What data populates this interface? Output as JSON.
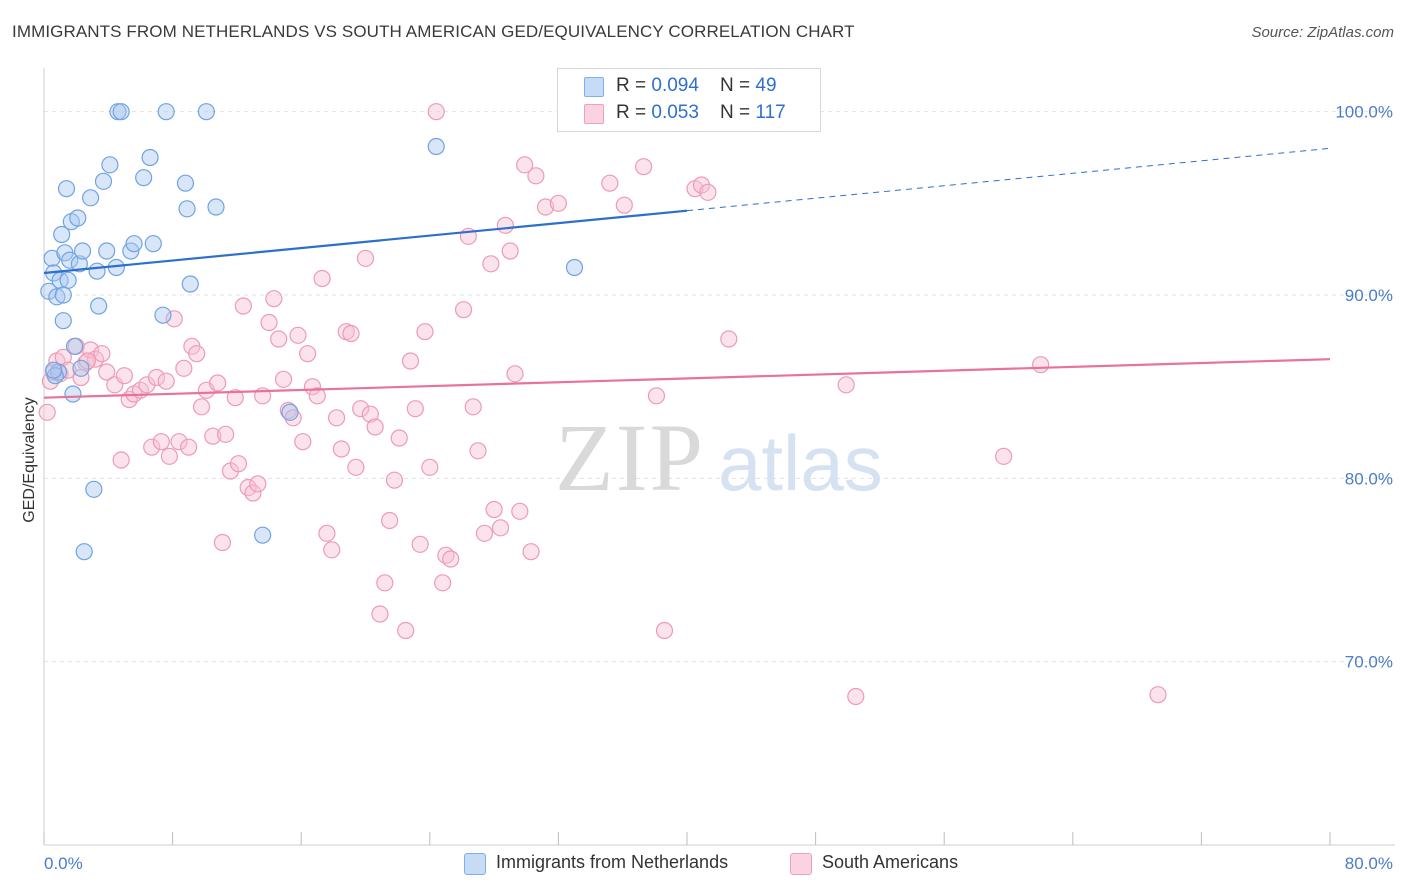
{
  "header": {
    "title": "IMMIGRANTS FROM NETHERLANDS VS SOUTH AMERICAN GED/EQUIVALENCY CORRELATION CHART",
    "source": "Source: ZipAtlas.com"
  },
  "watermark": {
    "zip": "ZIP",
    "atlas": "atlas"
  },
  "legend": {
    "rows": [
      {
        "r_label": "R = ",
        "r_value": "0.094",
        "n_label": "N = ",
        "n_value": "49",
        "color": "#a9c8f0"
      },
      {
        "r_label": "R = ",
        "r_value": "0.053",
        "n_label": "N = ",
        "n_value": "117",
        "color": "#f5b3c8"
      }
    ]
  },
  "bottom_legend": {
    "items": [
      {
        "label": "Immigrants from Netherlands",
        "color": "#a9c8f0"
      },
      {
        "label": "South Americans",
        "color": "#f5b3c8"
      }
    ]
  },
  "chart_data": {
    "type": "scatter",
    "title": "IMMIGRANTS FROM NETHERLANDS VS SOUTH AMERICAN GED/EQUIVALENCY CORRELATION CHART",
    "xlabel": "",
    "ylabel": "GED/Equivalency",
    "xlim": [
      0,
      80
    ],
    "ylim": [
      60,
      102
    ],
    "x_tick_labels": [
      "0.0%",
      "80.0%"
    ],
    "y_ticks": [
      70,
      80,
      90,
      100
    ],
    "y_tick_labels": [
      "70.0%",
      "80.0%",
      "90.0%",
      "100.0%"
    ],
    "grid": true,
    "legend_position": "top-center",
    "series": [
      {
        "name": "Immigrants from Netherlands",
        "color": "#7fb0e8",
        "line_color": "#2c6fce",
        "trend": {
          "x": [
            0,
            40
          ],
          "y": [
            91.2,
            94.6
          ],
          "dashed_to": [
            80,
            98.0
          ]
        },
        "points": [
          [
            0.3,
            90.2
          ],
          [
            0.5,
            92.0
          ],
          [
            0.6,
            91.2
          ],
          [
            0.8,
            89.9
          ],
          [
            0.9,
            85.8
          ],
          [
            1.0,
            90.8
          ],
          [
            1.1,
            93.3
          ],
          [
            1.2,
            88.6
          ],
          [
            1.3,
            92.3
          ],
          [
            1.4,
            95.8
          ],
          [
            1.5,
            90.8
          ],
          [
            1.6,
            91.9
          ],
          [
            1.7,
            94.0
          ],
          [
            1.8,
            84.6
          ],
          [
            1.9,
            87.2
          ],
          [
            2.1,
            94.2
          ],
          [
            2.2,
            91.7
          ],
          [
            2.3,
            86.0
          ],
          [
            2.4,
            92.4
          ],
          [
            2.5,
            76.0
          ],
          [
            2.9,
            95.3
          ],
          [
            3.1,
            79.4
          ],
          [
            3.3,
            91.3
          ],
          [
            3.4,
            89.4
          ],
          [
            3.7,
            96.2
          ],
          [
            3.9,
            92.4
          ],
          [
            4.1,
            97.1
          ],
          [
            4.5,
            91.5
          ],
          [
            4.6,
            100.0
          ],
          [
            4.8,
            100.0
          ],
          [
            5.4,
            92.4
          ],
          [
            5.6,
            92.8
          ],
          [
            6.2,
            96.4
          ],
          [
            6.6,
            97.5
          ],
          [
            6.8,
            92.8
          ],
          [
            7.4,
            88.9
          ],
          [
            7.6,
            100.0
          ],
          [
            8.8,
            96.1
          ],
          [
            8.9,
            94.7
          ],
          [
            9.1,
            90.6
          ],
          [
            10.1,
            100.0
          ],
          [
            10.7,
            94.8
          ],
          [
            13.6,
            76.9
          ],
          [
            15.3,
            83.6
          ],
          [
            24.4,
            98.1
          ],
          [
            33.0,
            91.5
          ],
          [
            0.7,
            85.6
          ],
          [
            0.6,
            85.9
          ],
          [
            1.2,
            90.0
          ]
        ]
      },
      {
        "name": "South Americans",
        "color": "#f0a0b8",
        "line_color": "#e8729a",
        "trend": {
          "x": [
            0,
            80
          ],
          "y": [
            84.4,
            86.5
          ]
        },
        "points": [
          [
            0.2,
            83.6
          ],
          [
            0.4,
            85.3
          ],
          [
            0.6,
            85.8
          ],
          [
            0.8,
            86.4
          ],
          [
            1.0,
            85.7
          ],
          [
            1.2,
            86.6
          ],
          [
            1.5,
            85.9
          ],
          [
            2.0,
            87.2
          ],
          [
            2.3,
            85.5
          ],
          [
            2.6,
            86.3
          ],
          [
            2.9,
            87.0
          ],
          [
            3.2,
            86.5
          ],
          [
            3.6,
            86.8
          ],
          [
            3.9,
            85.8
          ],
          [
            4.4,
            85.1
          ],
          [
            4.8,
            81.0
          ],
          [
            5.0,
            85.6
          ],
          [
            5.3,
            84.3
          ],
          [
            5.6,
            84.6
          ],
          [
            6.0,
            84.8
          ],
          [
            6.4,
            85.1
          ],
          [
            6.7,
            81.7
          ],
          [
            7.0,
            85.5
          ],
          [
            7.3,
            82.0
          ],
          [
            7.6,
            85.3
          ],
          [
            7.8,
            81.2
          ],
          [
            8.1,
            88.7
          ],
          [
            8.4,
            82.0
          ],
          [
            8.7,
            86.0
          ],
          [
            9.0,
            81.7
          ],
          [
            9.2,
            87.2
          ],
          [
            9.5,
            86.8
          ],
          [
            9.8,
            83.9
          ],
          [
            10.1,
            84.8
          ],
          [
            10.5,
            82.3
          ],
          [
            10.8,
            85.2
          ],
          [
            11.1,
            76.5
          ],
          [
            11.3,
            82.4
          ],
          [
            11.6,
            80.4
          ],
          [
            11.9,
            84.4
          ],
          [
            12.1,
            80.8
          ],
          [
            12.4,
            89.4
          ],
          [
            12.7,
            79.5
          ],
          [
            13.0,
            79.2
          ],
          [
            13.3,
            79.7
          ],
          [
            13.6,
            84.5
          ],
          [
            14.0,
            88.5
          ],
          [
            14.3,
            89.8
          ],
          [
            14.6,
            87.6
          ],
          [
            14.9,
            85.4
          ],
          [
            15.2,
            83.7
          ],
          [
            15.5,
            83.3
          ],
          [
            15.8,
            87.8
          ],
          [
            16.1,
            82.0
          ],
          [
            16.4,
            86.8
          ],
          [
            16.7,
            85.0
          ],
          [
            17.0,
            84.5
          ],
          [
            17.3,
            90.9
          ],
          [
            17.6,
            77.0
          ],
          [
            17.9,
            76.1
          ],
          [
            18.2,
            83.3
          ],
          [
            18.5,
            81.6
          ],
          [
            18.8,
            88.0
          ],
          [
            19.1,
            87.9
          ],
          [
            19.4,
            80.6
          ],
          [
            19.7,
            83.8
          ],
          [
            20.0,
            92.0
          ],
          [
            20.3,
            83.5
          ],
          [
            20.6,
            82.8
          ],
          [
            20.9,
            72.6
          ],
          [
            21.2,
            74.3
          ],
          [
            21.5,
            77.7
          ],
          [
            21.8,
            79.9
          ],
          [
            22.1,
            82.2
          ],
          [
            22.5,
            71.7
          ],
          [
            22.8,
            86.4
          ],
          [
            23.1,
            83.8
          ],
          [
            23.4,
            76.4
          ],
          [
            23.7,
            88.0
          ],
          [
            24.0,
            80.6
          ],
          [
            24.4,
            100.0
          ],
          [
            24.8,
            74.3
          ],
          [
            25.0,
            75.8
          ],
          [
            25.3,
            75.6
          ],
          [
            26.1,
            89.2
          ],
          [
            26.4,
            93.2
          ],
          [
            26.7,
            83.9
          ],
          [
            27.0,
            81.5
          ],
          [
            27.4,
            77.0
          ],
          [
            27.8,
            91.7
          ],
          [
            28.0,
            78.3
          ],
          [
            28.4,
            77.3
          ],
          [
            28.7,
            93.8
          ],
          [
            29.0,
            92.4
          ],
          [
            29.3,
            85.7
          ],
          [
            29.6,
            78.2
          ],
          [
            29.9,
            97.1
          ],
          [
            30.3,
            76.0
          ],
          [
            30.6,
            96.5
          ],
          [
            31.2,
            94.8
          ],
          [
            32.0,
            95.0
          ],
          [
            34.1,
            100.0
          ],
          [
            35.2,
            96.1
          ],
          [
            36.1,
            94.9
          ],
          [
            37.3,
            97.0
          ],
          [
            38.1,
            84.5
          ],
          [
            38.6,
            71.7
          ],
          [
            40.5,
            95.8
          ],
          [
            40.9,
            96.0
          ],
          [
            41.3,
            95.6
          ],
          [
            42.6,
            87.6
          ],
          [
            49.9,
            85.1
          ],
          [
            50.5,
            68.1
          ],
          [
            59.7,
            81.2
          ],
          [
            62.0,
            86.2
          ],
          [
            69.3,
            68.2
          ],
          [
            2.7,
            86.4
          ]
        ]
      }
    ]
  }
}
